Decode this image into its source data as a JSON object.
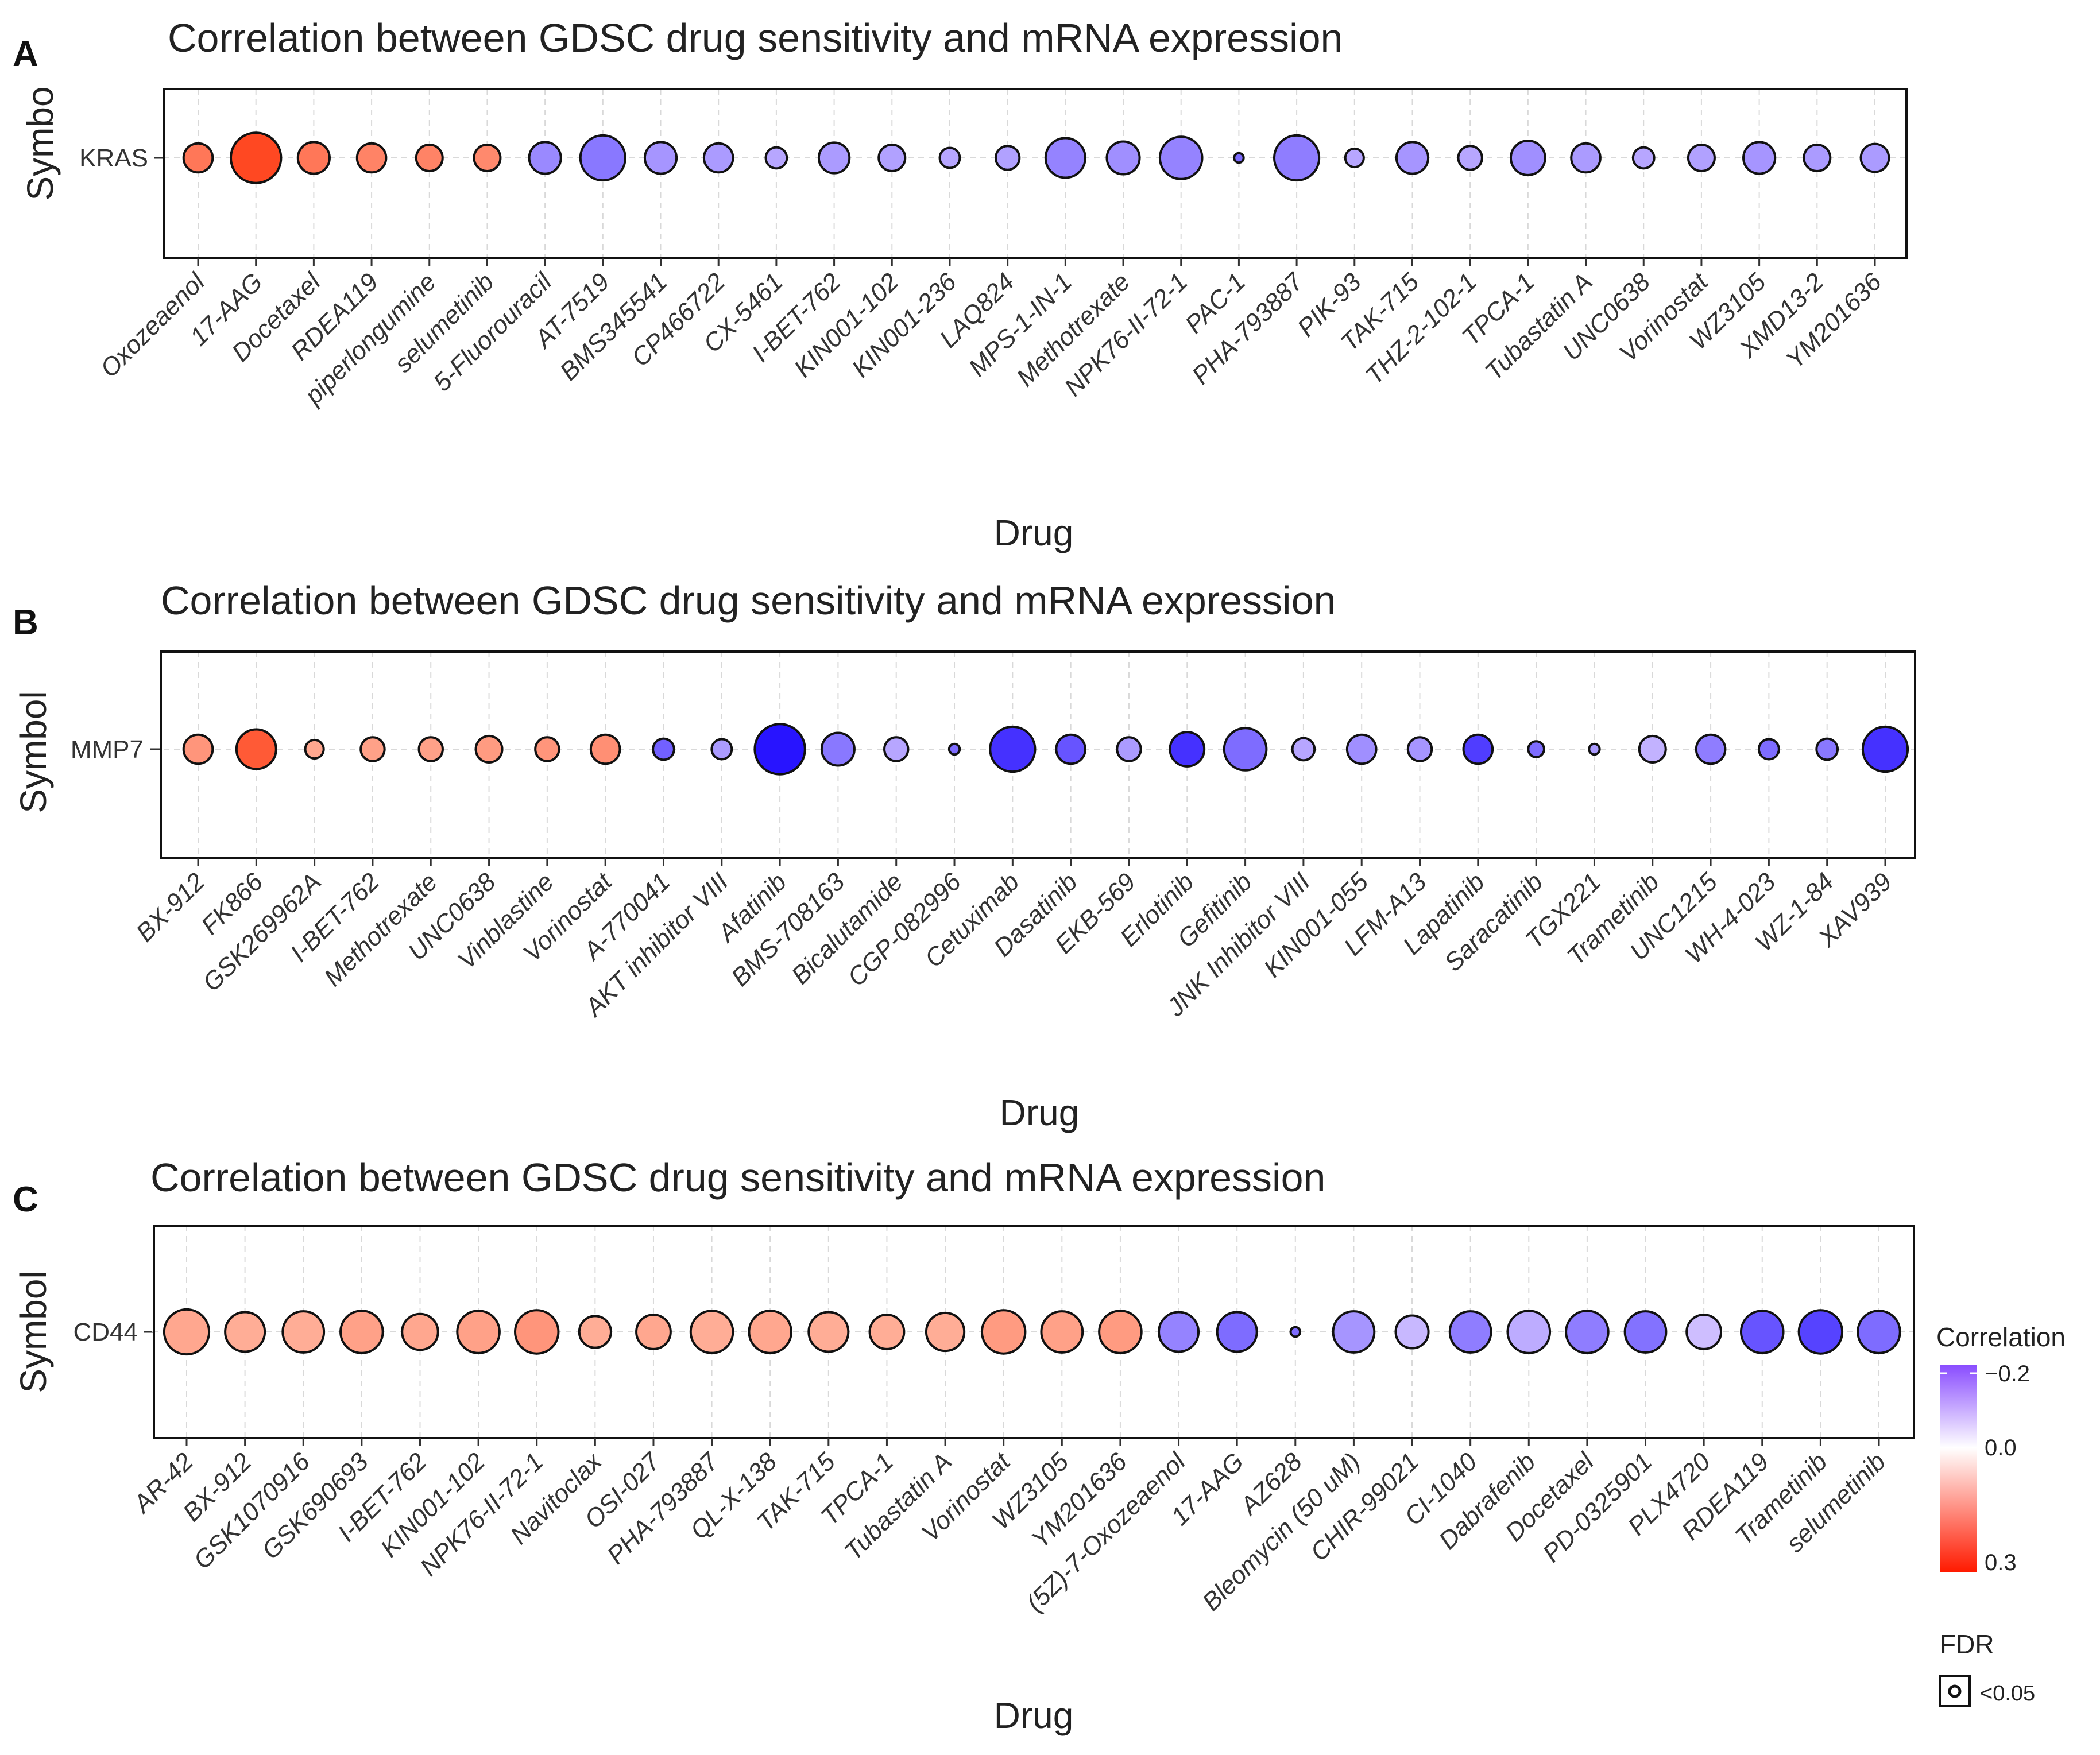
{
  "chart_data": [
    {
      "type": "scatter",
      "panel": "A",
      "title": "Correlation between GDSC drug sensitivity and mRNA expression",
      "xlabel": "Drug",
      "ylabel": "Symbo",
      "symbol": "KRAS",
      "drugs": [
        "Oxozeaenol",
        "17-AAG",
        "Docetaxel",
        "RDEA119",
        "piperlongumine",
        "selumetinib",
        "5-Fluorouracil",
        "AT-7519",
        "BMS345541",
        "CP466722",
        "CX-5461",
        "I-BET-762",
        "KIN001-102",
        "KIN001-236",
        "LAQ824",
        "MPS-1-IN-1",
        "Methotrexate",
        "NPK76-II-72-1",
        "PAC-1",
        "PHA-793887",
        "PIK-93",
        "TAK-715",
        "THZ-2-102-1",
        "TPCA-1",
        "Tubastatin A",
        "UNC0638",
        "Vorinostat",
        "WZ3105",
        "XMD13-2",
        "YM201636"
      ],
      "correlation": [
        0.2,
        0.28,
        0.2,
        0.18,
        0.18,
        0.17,
        -0.15,
        -0.18,
        -0.13,
        -0.12,
        -0.1,
        -0.12,
        -0.11,
        -0.1,
        -0.11,
        -0.16,
        -0.14,
        -0.16,
        -0.2,
        -0.17,
        -0.1,
        -0.13,
        -0.1,
        -0.14,
        -0.12,
        -0.1,
        -0.11,
        -0.13,
        -0.12,
        -0.12
      ],
      "size": [
        0.55,
        0.95,
        0.6,
        0.55,
        0.5,
        0.5,
        0.6,
        0.85,
        0.6,
        0.55,
        0.4,
        0.58,
        0.5,
        0.38,
        0.45,
        0.75,
        0.62,
        0.8,
        0.18,
        0.85,
        0.35,
        0.6,
        0.45,
        0.65,
        0.55,
        0.4,
        0.5,
        0.6,
        0.5,
        0.53
      ],
      "fdr_label": "<0.05"
    },
    {
      "type": "scatter",
      "panel": "B",
      "title": "Correlation between GDSC drug sensitivity and mRNA expression",
      "xlabel": "Drug",
      "ylabel": "Symbol",
      "symbol": "MMP7",
      "drugs": [
        "BX-912",
        "FK866",
        "GSK269962A",
        "I-BET-762",
        "Methotrexate",
        "UNC0638",
        "Vinblastine",
        "Vorinostat",
        "A-770041",
        "AKT inhibitor VIII",
        "Afatinib",
        "BMS-708163",
        "Bicalutamide",
        "CGP-082996",
        "Cetuximab",
        "Dasatinib",
        "EKB-569",
        "Erlotinib",
        "Gefitinib",
        "JNK Inhibitor VIII",
        "KIN001-055",
        "LFM-A13",
        "Lapatinib",
        "Saracatinib",
        "TGX221",
        "Trametinib",
        "UNC1215",
        "WH-4-023",
        "WZ-1-84",
        "XAV939"
      ],
      "correlation": [
        0.15,
        0.25,
        0.12,
        0.13,
        0.13,
        0.14,
        0.15,
        0.16,
        -0.22,
        -0.12,
        -0.35,
        -0.18,
        -0.1,
        -0.2,
        -0.3,
        -0.24,
        -0.12,
        -0.3,
        -0.2,
        -0.1,
        -0.14,
        -0.13,
        -0.28,
        -0.2,
        -0.12,
        -0.08,
        -0.17,
        -0.2,
        -0.18,
        -0.3
      ],
      "size": [
        0.55,
        0.75,
        0.35,
        0.45,
        0.45,
        0.5,
        0.45,
        0.55,
        0.4,
        0.38,
        0.95,
        0.62,
        0.45,
        0.2,
        0.85,
        0.55,
        0.45,
        0.65,
        0.8,
        0.42,
        0.55,
        0.45,
        0.55,
        0.3,
        0.2,
        0.5,
        0.55,
        0.38,
        0.4,
        0.85
      ],
      "fdr_label": "<0.05"
    },
    {
      "type": "scatter",
      "panel": "C",
      "title": "Correlation between GDSC drug sensitivity and mRNA expression",
      "xlabel": "Drug",
      "ylabel": "Symbol",
      "symbol": "CD44",
      "drugs": [
        "AR-42",
        "BX-912",
        "GSK1070916",
        "GSK690693",
        "I-BET-762",
        "KIN001-102",
        "NPK76-II-72-1",
        "Navitoclax",
        "OSI-027",
        "PHA-793887",
        "QL-X-138",
        "TAK-715",
        "TPCA-1",
        "Tubastatin A",
        "Vorinostat",
        "WZ3105",
        "YM201636",
        "(5Z)-7-Oxozeaenol",
        "17-AAG",
        "AZ628",
        "Bleomycin (50 uM)",
        "CHIR-99021",
        "CI-1040",
        "Dabrafenib",
        "Docetaxel",
        "PD-0325901",
        "PLX4720",
        "RDEA119",
        "Trametinib",
        "selumetinib"
      ],
      "correlation": [
        0.12,
        0.11,
        0.11,
        0.13,
        0.12,
        0.13,
        0.15,
        0.11,
        0.12,
        0.11,
        0.12,
        0.11,
        0.11,
        0.11,
        0.14,
        0.13,
        0.14,
        -0.16,
        -0.2,
        -0.2,
        -0.13,
        -0.07,
        -0.17,
        -0.09,
        -0.17,
        -0.19,
        -0.06,
        -0.24,
        -0.27,
        -0.2
      ],
      "size": [
        0.85,
        0.75,
        0.78,
        0.8,
        0.68,
        0.8,
        0.82,
        0.6,
        0.65,
        0.8,
        0.8,
        0.75,
        0.65,
        0.72,
        0.82,
        0.78,
        0.8,
        0.75,
        0.75,
        0.18,
        0.78,
        0.62,
        0.78,
        0.8,
        0.8,
        0.78,
        0.65,
        0.8,
        0.82,
        0.8
      ],
      "fdr_label": "<0.05"
    }
  ],
  "legend": {
    "correlation_title": "Correlation",
    "color_ticks": [
      "−0.2",
      "0.0",
      "0.3"
    ],
    "fdr_title": "FDR",
    "fdr_label": "<0.05"
  },
  "colors": {
    "negative": "#5a1eff",
    "neutral": "#ffffff",
    "positive": "#ff1a00",
    "grid": "#d9d9d9",
    "border": "#111111"
  }
}
